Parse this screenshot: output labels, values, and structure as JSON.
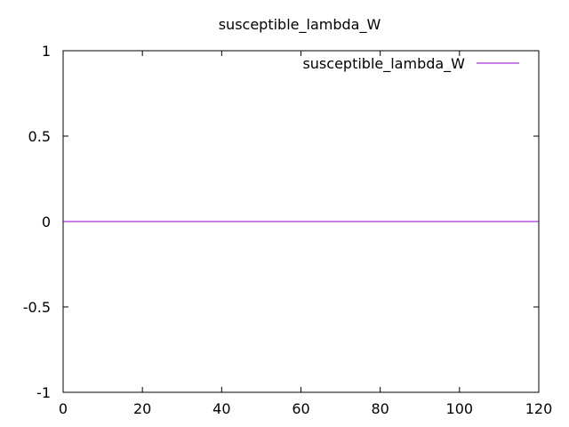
{
  "chart_data": {
    "type": "line",
    "title": "susceptible_lambda_W",
    "xlabel": "",
    "ylabel": "",
    "xlim": [
      0,
      120
    ],
    "ylim": [
      -1,
      1
    ],
    "x_ticks": [
      0,
      20,
      40,
      60,
      80,
      100,
      120
    ],
    "y_ticks": [
      -1,
      -0.5,
      0,
      0.5,
      1
    ],
    "x_tick_labels": [
      "0",
      "20",
      "40",
      "60",
      "80",
      "100",
      "120"
    ],
    "y_tick_labels": [
      "-1",
      "-0.5",
      "0",
      "0.5",
      "1"
    ],
    "grid": false,
    "legend_position": "top-right",
    "series": [
      {
        "name": "susceptible_lambda_W",
        "color": "#9400d3",
        "x": [
          0,
          120
        ],
        "y": [
          0,
          0
        ]
      }
    ]
  }
}
